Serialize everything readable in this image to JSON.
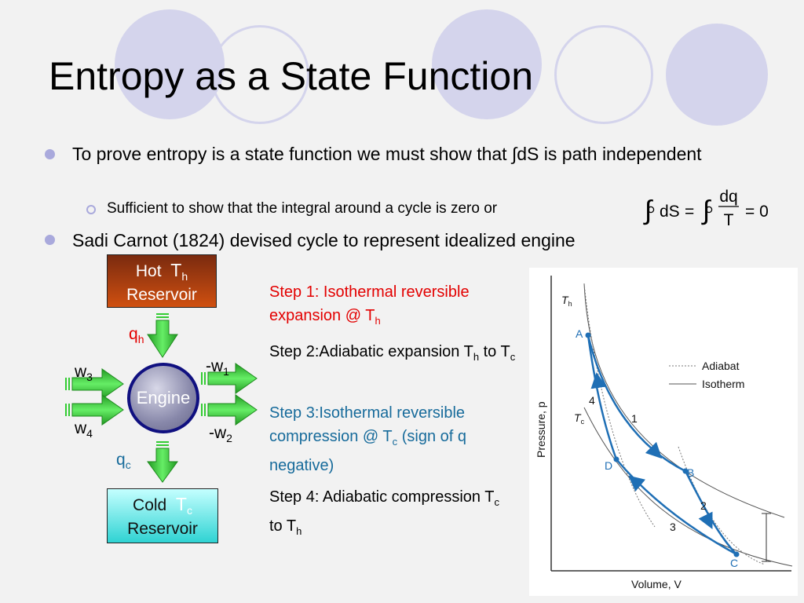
{
  "slide": {
    "title": "Entropy as a State Function",
    "bullets": [
      {
        "text_a": "To prove entropy is a state function  we must show that ",
        "integral": "∫",
        "text_b": "dS is path independent"
      },
      {
        "text": "Sadi Carnot (1824) devised cycle to represent idealized engine"
      }
    ],
    "sub_bullet": "Sufficient to show that the integral around a cycle is zero or",
    "equation": {
      "lhs": "dS",
      "eq": "=",
      "num": "dq",
      "den": "T",
      "rhs": "= 0"
    }
  },
  "engine_diagram": {
    "hot": {
      "line1": "Hot",
      "symbol": "T",
      "sub": "h",
      "line2": "Reservoir"
    },
    "cold": {
      "line1": "Cold",
      "symbol": "T",
      "sub": "c",
      "line2": "Reservoir"
    },
    "engine_label": "Engine",
    "qh": {
      "base": "q",
      "sub": "h"
    },
    "qc": {
      "base": "q",
      "sub": "c"
    },
    "w1": {
      "base": "-w",
      "sub": "1"
    },
    "w2": {
      "base": "-w",
      "sub": "2"
    },
    "w3": {
      "base": "w",
      "sub": "3"
    },
    "w4": {
      "base": "w",
      "sub": "4"
    },
    "colors": {
      "hot_top": "#7a2a0f",
      "hot_bottom": "#d05010",
      "cold_top": "#c4ffff",
      "cold_bottom": "#2fd3d3",
      "engine": "#8888aa",
      "arrow": "#33cc33"
    }
  },
  "steps": [
    {
      "text": "Step 1: Isothermal reversible expansion @ T",
      "sub": "h",
      "color": "#e30000"
    },
    {
      "text": "Step 2:Adiabatic expansion T",
      "sub": "h",
      "text2": " to T",
      "sub2": "c",
      "color": "#000000"
    },
    {
      "text": "Step 3:Isothermal reversible compression @ T",
      "sub": "c",
      "text2": " (sign of q negative)",
      "color": "#176b9b"
    },
    {
      "text": "Step 4: Adiabatic compression  T",
      "sub": "c",
      "text2": " to T",
      "sub2": "h",
      "color": "#000000"
    }
  ],
  "pv_figure": {
    "x_axis": "Volume, V",
    "y_axis": "Pressure, p",
    "Th_label": "T",
    "Th_sub": "h",
    "Tc_label": "T",
    "Tc_sub": "c",
    "points": {
      "A": "A",
      "B": "B",
      "C": "C",
      "D": "D"
    },
    "step_numbers": [
      "1",
      "2",
      "3",
      "4"
    ],
    "legend": {
      "adiabat": "Adiabat",
      "isotherm": "Isotherm"
    },
    "colors": {
      "cycle": "#1f6fb5",
      "isotherm": "#555555"
    }
  }
}
